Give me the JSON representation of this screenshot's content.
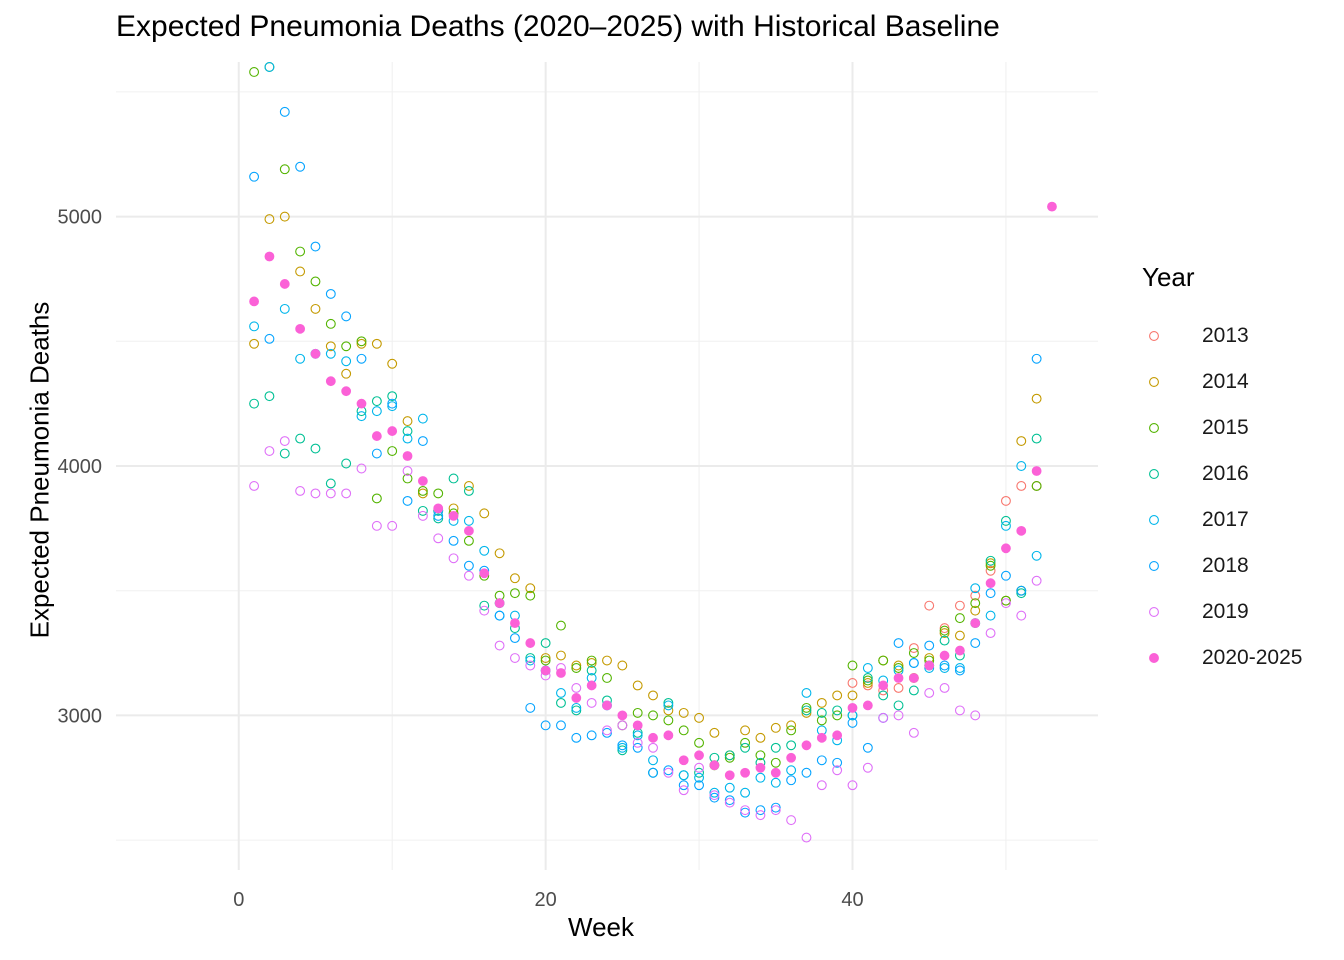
{
  "chart_data": {
    "type": "scatter",
    "title": "Expected Pneumonia Deaths (2020–2025) with Historical Baseline",
    "xlabel": "Week",
    "ylabel": "Expected Pneumonia Deaths",
    "xlim": [
      -8,
      56
    ],
    "ylim": [
      2380,
      5620
    ],
    "x_ticks": [
      0,
      20,
      40
    ],
    "y_ticks": [
      3000,
      4000,
      5000
    ],
    "grid": true,
    "legend_title": "Year",
    "legend_position": "right",
    "series": [
      {
        "name": "2013",
        "color": "#F8766D",
        "filled": false,
        "x": [
          40,
          41,
          42,
          43,
          44,
          45,
          46,
          47,
          48,
          49,
          50,
          51,
          52
        ],
        "y": [
          3130,
          3120,
          3100,
          3110,
          3270,
          3440,
          3350,
          3440,
          3480,
          3580,
          3860,
          3920,
          3920
        ]
      },
      {
        "name": "2014",
        "color": "#C49A00",
        "filled": false,
        "x": [
          1,
          2,
          3,
          4,
          5,
          6,
          7,
          8,
          9,
          10,
          11,
          12,
          13,
          14,
          15,
          16,
          17,
          18,
          19,
          20,
          21,
          22,
          23,
          24,
          25,
          26,
          27,
          28,
          29,
          30,
          31,
          32,
          33,
          34,
          35,
          36,
          37,
          38,
          39,
          40,
          41,
          42,
          43,
          44,
          45,
          46,
          47,
          48,
          49,
          50,
          51,
          52
        ],
        "y": [
          4490,
          4990,
          5000,
          4780,
          4630,
          4480,
          4370,
          4490,
          4490,
          4410,
          4180,
          3890,
          3820,
          3830,
          3920,
          3810,
          3650,
          3550,
          3510,
          3230,
          3240,
          3200,
          3210,
          3220,
          3200,
          3120,
          3080,
          3020,
          3010,
          2990,
          2930,
          2840,
          2940,
          2910,
          2950,
          2960,
          3010,
          3050,
          3080,
          3080,
          3130,
          3220,
          3200,
          3150,
          3230,
          3330,
          3320,
          3420,
          3610,
          3460,
          4100,
          4270
        ]
      },
      {
        "name": "2015",
        "color": "#53B400",
        "filled": false,
        "x": [
          1,
          2,
          3,
          4,
          5,
          6,
          7,
          8,
          9,
          10,
          11,
          12,
          13,
          14,
          15,
          16,
          17,
          18,
          19,
          20,
          21,
          22,
          23,
          24,
          25,
          26,
          27,
          28,
          29,
          30,
          31,
          32,
          33,
          34,
          35,
          36,
          37,
          38,
          39,
          40,
          41,
          42,
          43,
          44,
          45,
          46,
          47,
          48,
          49,
          50,
          51,
          52
        ],
        "y": [
          5580,
          5600,
          5190,
          4860,
          4740,
          4570,
          4480,
          4500,
          3870,
          4060,
          3950,
          3900,
          3890,
          3810,
          3700,
          3560,
          3480,
          3490,
          3480,
          3220,
          3360,
          3190,
          3220,
          3150,
          2960,
          3010,
          3000,
          2980,
          2940,
          2890,
          2800,
          2830,
          2890,
          2840,
          2810,
          2940,
          3030,
          2980,
          3000,
          3200,
          3140,
          3220,
          3190,
          3250,
          3220,
          3340,
          3390,
          3450,
          3600,
          3460,
          3500,
          3920
        ]
      },
      {
        "name": "2016",
        "color": "#00C094",
        "filled": false,
        "x": [
          1,
          2,
          3,
          4,
          5,
          6,
          7,
          8,
          9,
          10,
          11,
          12,
          13,
          14,
          15,
          16,
          17,
          18,
          19,
          20,
          21,
          22,
          23,
          24,
          25,
          26,
          27,
          28,
          29,
          30,
          31,
          32,
          33,
          34,
          35,
          36,
          37,
          38,
          39,
          40,
          41,
          42,
          43,
          44,
          45,
          46,
          47,
          48,
          49,
          50,
          51,
          52
        ],
        "y": [
          4250,
          4280,
          4050,
          4110,
          4070,
          3930,
          4010,
          4220,
          4260,
          4280,
          4140,
          3820,
          3790,
          3950,
          3900,
          3440,
          3450,
          3350,
          3230,
          3290,
          3050,
          3020,
          3180,
          3060,
          2860,
          2930,
          2770,
          3050,
          2760,
          2770,
          2830,
          2840,
          2870,
          2810,
          2870,
          2880,
          3020,
          3010,
          3020,
          3000,
          3150,
          3080,
          3040,
          3100,
          3200,
          3300,
          3240,
          3370,
          3620,
          3780,
          3490,
          4110
        ]
      },
      {
        "name": "2017",
        "color": "#00B6EB",
        "filled": false,
        "x": [
          1,
          2,
          3,
          4,
          5,
          6,
          7,
          8,
          9,
          10,
          11,
          12,
          13,
          14,
          15,
          16,
          17,
          18,
          19,
          20,
          21,
          22,
          23,
          24,
          25,
          26,
          27,
          28,
          29,
          30,
          31,
          32,
          33,
          34,
          35,
          36,
          37,
          38,
          39,
          40,
          41,
          42,
          43,
          44,
          45,
          46,
          47,
          48,
          49,
          50,
          51,
          52
        ],
        "y": [
          4560,
          5600,
          4630,
          4430,
          4450,
          4450,
          4420,
          4200,
          4220,
          4240,
          4110,
          4190,
          3820,
          3780,
          3780,
          3660,
          3400,
          3400,
          3220,
          3180,
          3090,
          3030,
          3150,
          3040,
          2870,
          2920,
          2820,
          3040,
          2760,
          2750,
          2690,
          2710,
          2690,
          2750,
          2730,
          2780,
          3090,
          2940,
          2900,
          3000,
          3190,
          3140,
          3180,
          3210,
          3190,
          3190,
          3190,
          3510,
          3400,
          3760,
          4000,
          3640
        ]
      },
      {
        "name": "2018",
        "color": "#06A4FF",
        "filled": false,
        "x": [
          1,
          2,
          3,
          4,
          5,
          6,
          7,
          8,
          9,
          10,
          11,
          12,
          13,
          14,
          15,
          16,
          17,
          18,
          19,
          20,
          21,
          22,
          23,
          24,
          25,
          26,
          27,
          28,
          29,
          30,
          31,
          32,
          33,
          34,
          35,
          36,
          37,
          38,
          39,
          40,
          41,
          42,
          43,
          44,
          45,
          46,
          47,
          48,
          49,
          50,
          51,
          52
        ],
        "y": [
          5160,
          4510,
          5420,
          5200,
          4880,
          4690,
          4600,
          4430,
          4050,
          4250,
          3860,
          4100,
          3800,
          3700,
          3600,
          3580,
          3400,
          3310,
          3030,
          2960,
          2960,
          2910,
          2920,
          2930,
          2880,
          2870,
          2770,
          2780,
          2720,
          2720,
          2670,
          2660,
          2610,
          2620,
          2630,
          2740,
          2770,
          2820,
          2810,
          2970,
          2870,
          2990,
          3290,
          3210,
          3280,
          3200,
          3180,
          3290,
          3490,
          3560,
          3500,
          4430
        ]
      },
      {
        "name": "2019",
        "color": "#DF70F8",
        "filled": false,
        "x": [
          1,
          2,
          3,
          4,
          5,
          6,
          7,
          8,
          9,
          10,
          11,
          12,
          13,
          14,
          15,
          16,
          17,
          18,
          19,
          20,
          21,
          22,
          23,
          24,
          25,
          26,
          27,
          28,
          29,
          30,
          31,
          32,
          33,
          34,
          35,
          36,
          37,
          38,
          39,
          40,
          41,
          42,
          43,
          44,
          45,
          46,
          47,
          48,
          49,
          50,
          51,
          52
        ],
        "y": [
          3920,
          4060,
          4100,
          3900,
          3890,
          3890,
          3890,
          3990,
          3760,
          3760,
          3980,
          3800,
          3710,
          3630,
          3560,
          3420,
          3280,
          3230,
          3200,
          3160,
          3190,
          3110,
          3050,
          2940,
          2960,
          2890,
          2870,
          2770,
          2700,
          2790,
          2680,
          2650,
          2620,
          2600,
          2620,
          2580,
          2510,
          2720,
          2780,
          2720,
          2790,
          2990,
          3000,
          2930,
          3090,
          3110,
          3020,
          3000,
          3330,
          3450,
          3400,
          3540
        ]
      },
      {
        "name": "2020-2025",
        "color": "#FB61D7",
        "filled": true,
        "x": [
          1,
          2,
          3,
          4,
          5,
          6,
          7,
          8,
          9,
          10,
          11,
          12,
          13,
          14,
          15,
          16,
          17,
          18,
          19,
          20,
          21,
          22,
          23,
          24,
          25,
          26,
          27,
          28,
          29,
          30,
          31,
          32,
          33,
          34,
          35,
          36,
          37,
          38,
          39,
          40,
          41,
          42,
          43,
          44,
          45,
          46,
          47,
          48,
          49,
          50,
          51,
          52,
          53
        ],
        "y": [
          4660,
          4840,
          4730,
          4550,
          4450,
          4340,
          4300,
          4250,
          4120,
          4140,
          4040,
          3940,
          3830,
          3800,
          3740,
          3570,
          3450,
          3370,
          3290,
          3180,
          3170,
          3070,
          3120,
          3040,
          3000,
          2960,
          2910,
          2920,
          2820,
          2840,
          2800,
          2760,
          2770,
          2790,
          2770,
          2830,
          2880,
          2910,
          2920,
          3030,
          3040,
          3120,
          3150,
          3150,
          3200,
          3240,
          3260,
          3370,
          3530,
          3670,
          3740,
          3980,
          5040
        ]
      }
    ]
  }
}
